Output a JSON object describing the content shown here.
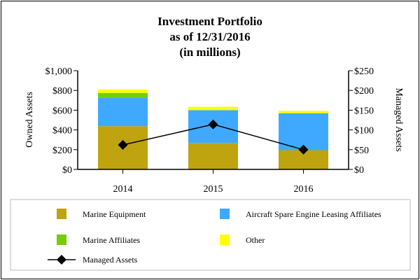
{
  "chart_data": {
    "type": "bar",
    "stacked": true,
    "title": [
      "Investment Portfolio",
      "as of 12/31/2016",
      "(in millions)"
    ],
    "categories": [
      "2014",
      "2015",
      "2016"
    ],
    "ylabel": "Owned Assets",
    "y2label": "Managed Assets",
    "ylim": [
      0,
      1000
    ],
    "y2lim": [
      0,
      250
    ],
    "yticks": [
      "$0",
      "$200",
      "$400",
      "$600",
      "$800",
      "$1,000"
    ],
    "y2ticks": [
      "$0",
      "$50",
      "$100",
      "$150",
      "$200",
      "$250"
    ],
    "grid": false,
    "legend_position": "bottom",
    "series": [
      {
        "name": "Marine Equipment",
        "color": "#bfa30f",
        "values": [
          438,
          268,
          195
        ]
      },
      {
        "name": "Aircraft Spare Engine Leasing Affiliates",
        "color": "#3fa9ff",
        "values": [
          290,
          332,
          374
        ]
      },
      {
        "name": "Marine Affiliates",
        "color": "#77cc0a",
        "values": [
          47,
          0,
          0
        ]
      },
      {
        "name": "Other",
        "color": "#ffff00",
        "values": [
          35,
          35,
          24
        ]
      }
    ],
    "line_series": {
      "name": "Managed Assets",
      "axis": "right",
      "color": "#000000",
      "marker": "diamond",
      "values": [
        62,
        114,
        50
      ]
    }
  }
}
